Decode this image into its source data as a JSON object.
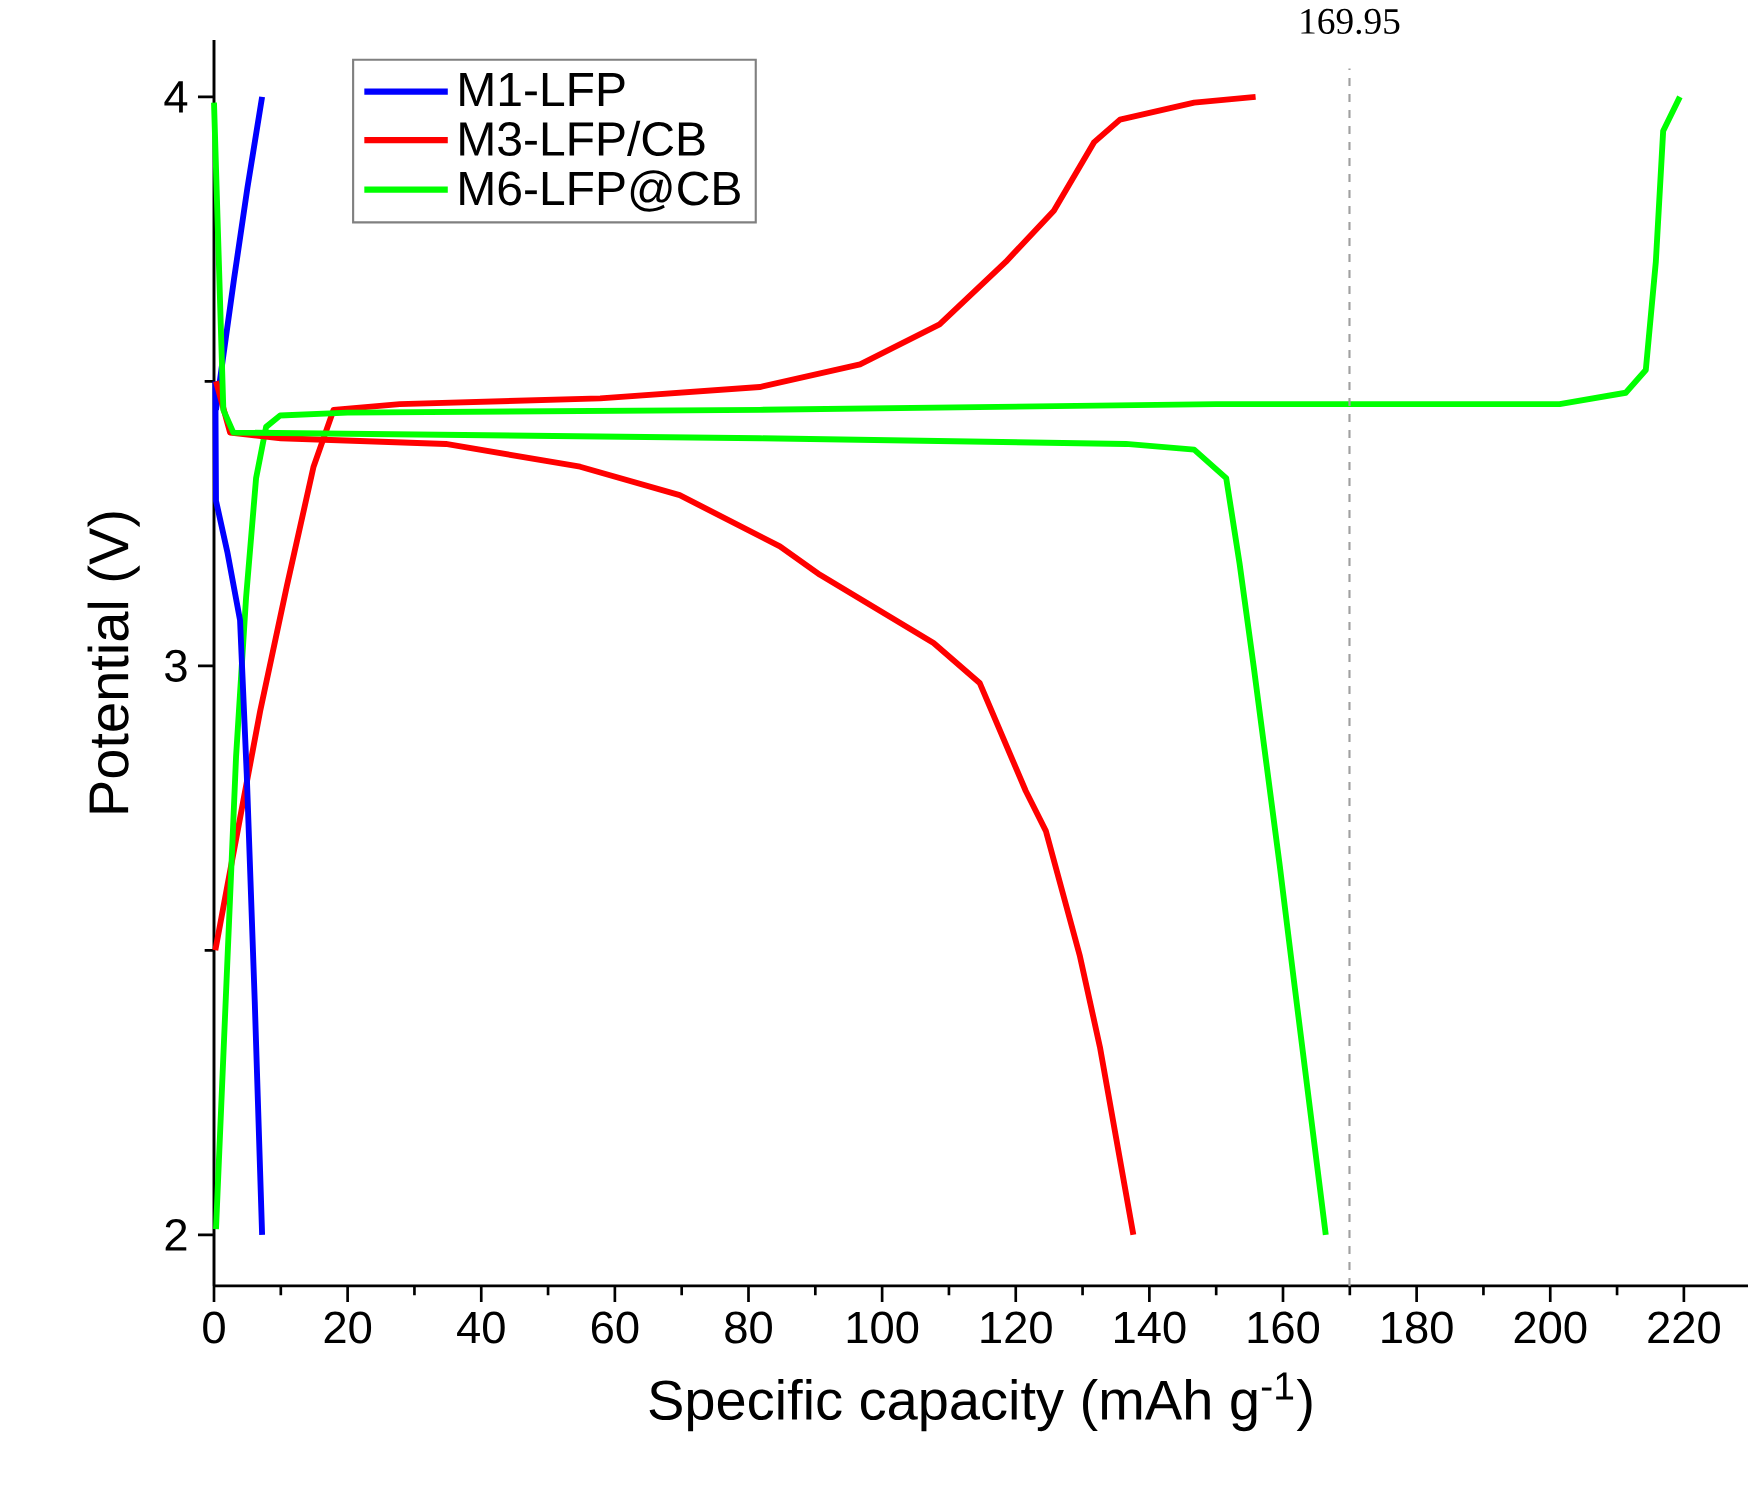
{
  "chart_data": {
    "type": "line",
    "xlabel": "Specific capacity (mAh g$^{-1}$)",
    "ylabel": "Potential (V)",
    "xlim": [
      0,
      229.6
    ],
    "ylim": [
      1.91,
      4.1
    ],
    "xticks": [
      0,
      {
        "value": 10,
        "label": null
      },
      20,
      {
        "value": 30,
        "label": null
      },
      40,
      {
        "value": 50,
        "label": null
      },
      60,
      {
        "value": 70,
        "label": null
      },
      80,
      {
        "value": 90,
        "label": null
      },
      100,
      {
        "value": 110,
        "label": null
      },
      120,
      {
        "value": 130,
        "label": null
      },
      140,
      {
        "value": 150,
        "label": null
      },
      160,
      {
        "value": 170,
        "label": null
      },
      180,
      {
        "value": 190,
        "label": null
      },
      200,
      {
        "value": 210,
        "label": null
      },
      220
    ],
    "yticks": [
      2,
      {
        "value": 2.5,
        "label": null
      },
      3,
      {
        "value": 3.5,
        "label": null
      },
      4
    ],
    "legend": "top left",
    "series": [
      {
        "name": "M1-LFP",
        "color": "#0000ff",
        "x": [
          0.3,
          1.1,
          3,
          5,
          7.2
        ],
        "values": [
          3.45,
          3.52,
          3.68,
          3.84,
          4.0
        ]
      },
      {
        "name": "M3-LFP/CB",
        "color": "#ff0000",
        "x": [
          0.2,
          2.9,
          6.9,
          10.9,
          14.9,
          17.9,
          27.8,
          57.8,
          81.7,
          96.7,
          108.6,
          118.5,
          125.7,
          131.7,
          135.6,
          146.7,
          155.9
        ],
        "values": [
          2.5,
          2.67,
          2.92,
          3.14,
          3.35,
          3.45,
          3.46,
          3.47,
          3.49,
          3.53,
          3.6,
          3.71,
          3.8,
          3.92,
          3.96,
          3.99,
          4.0
        ]
      },
      {
        "name": "M6-LFP@CB",
        "color": "#00ff00",
        "x": [
          0.3,
          3.3,
          4.8,
          6.3,
          7.8,
          9.9,
          20,
          81.7,
          150,
          201.4,
          211.3,
          214.3,
          215.8,
          216.9,
          219.4
        ],
        "values": [
          2.01,
          2.84,
          3.12,
          3.33,
          3.42,
          3.44,
          3.445,
          3.45,
          3.46,
          3.46,
          3.48,
          3.52,
          3.71,
          3.94,
          4.0
        ]
      },
      {
        "color": "#0000ff",
        "x": [
          0.2,
          0.3,
          2,
          3.9,
          4.9,
          6.1,
          7.2
        ],
        "values": [
          3.5,
          3.29,
          3.2,
          3.08,
          2.81,
          2.41,
          2.0
        ]
      },
      {
        "color": "#ff0000",
        "x": [
          0.3,
          2.4,
          10,
          34.7,
          54.8,
          69.7,
          84.7,
          90.7,
          107.7,
          114.6,
          121.5,
          124.5,
          129.6,
          132.6,
          137.6
        ],
        "values": [
          3.5,
          3.41,
          3.4,
          3.39,
          3.35,
          3.3,
          3.21,
          3.16,
          3.04,
          2.97,
          2.78,
          2.71,
          2.49,
          2.33,
          2.0
        ]
      },
      {
        "color": "#00ff00",
        "x": [
          0,
          1.4,
          2.9,
          81.7,
          136.5,
          146.7,
          151.5,
          153.5,
          155.6,
          159.5,
          161.6,
          166.4
        ],
        "values": [
          3.99,
          3.45,
          3.41,
          3.4,
          3.39,
          3.38,
          3.33,
          3.18,
          3.0,
          2.65,
          2.45,
          2.0
        ]
      }
    ],
    "ref_lines": [
      {
        "axis": "x",
        "value": 169.95,
        "label": "169.95",
        "color": "#a0a0a0",
        "line_style": "dashed"
      }
    ]
  }
}
